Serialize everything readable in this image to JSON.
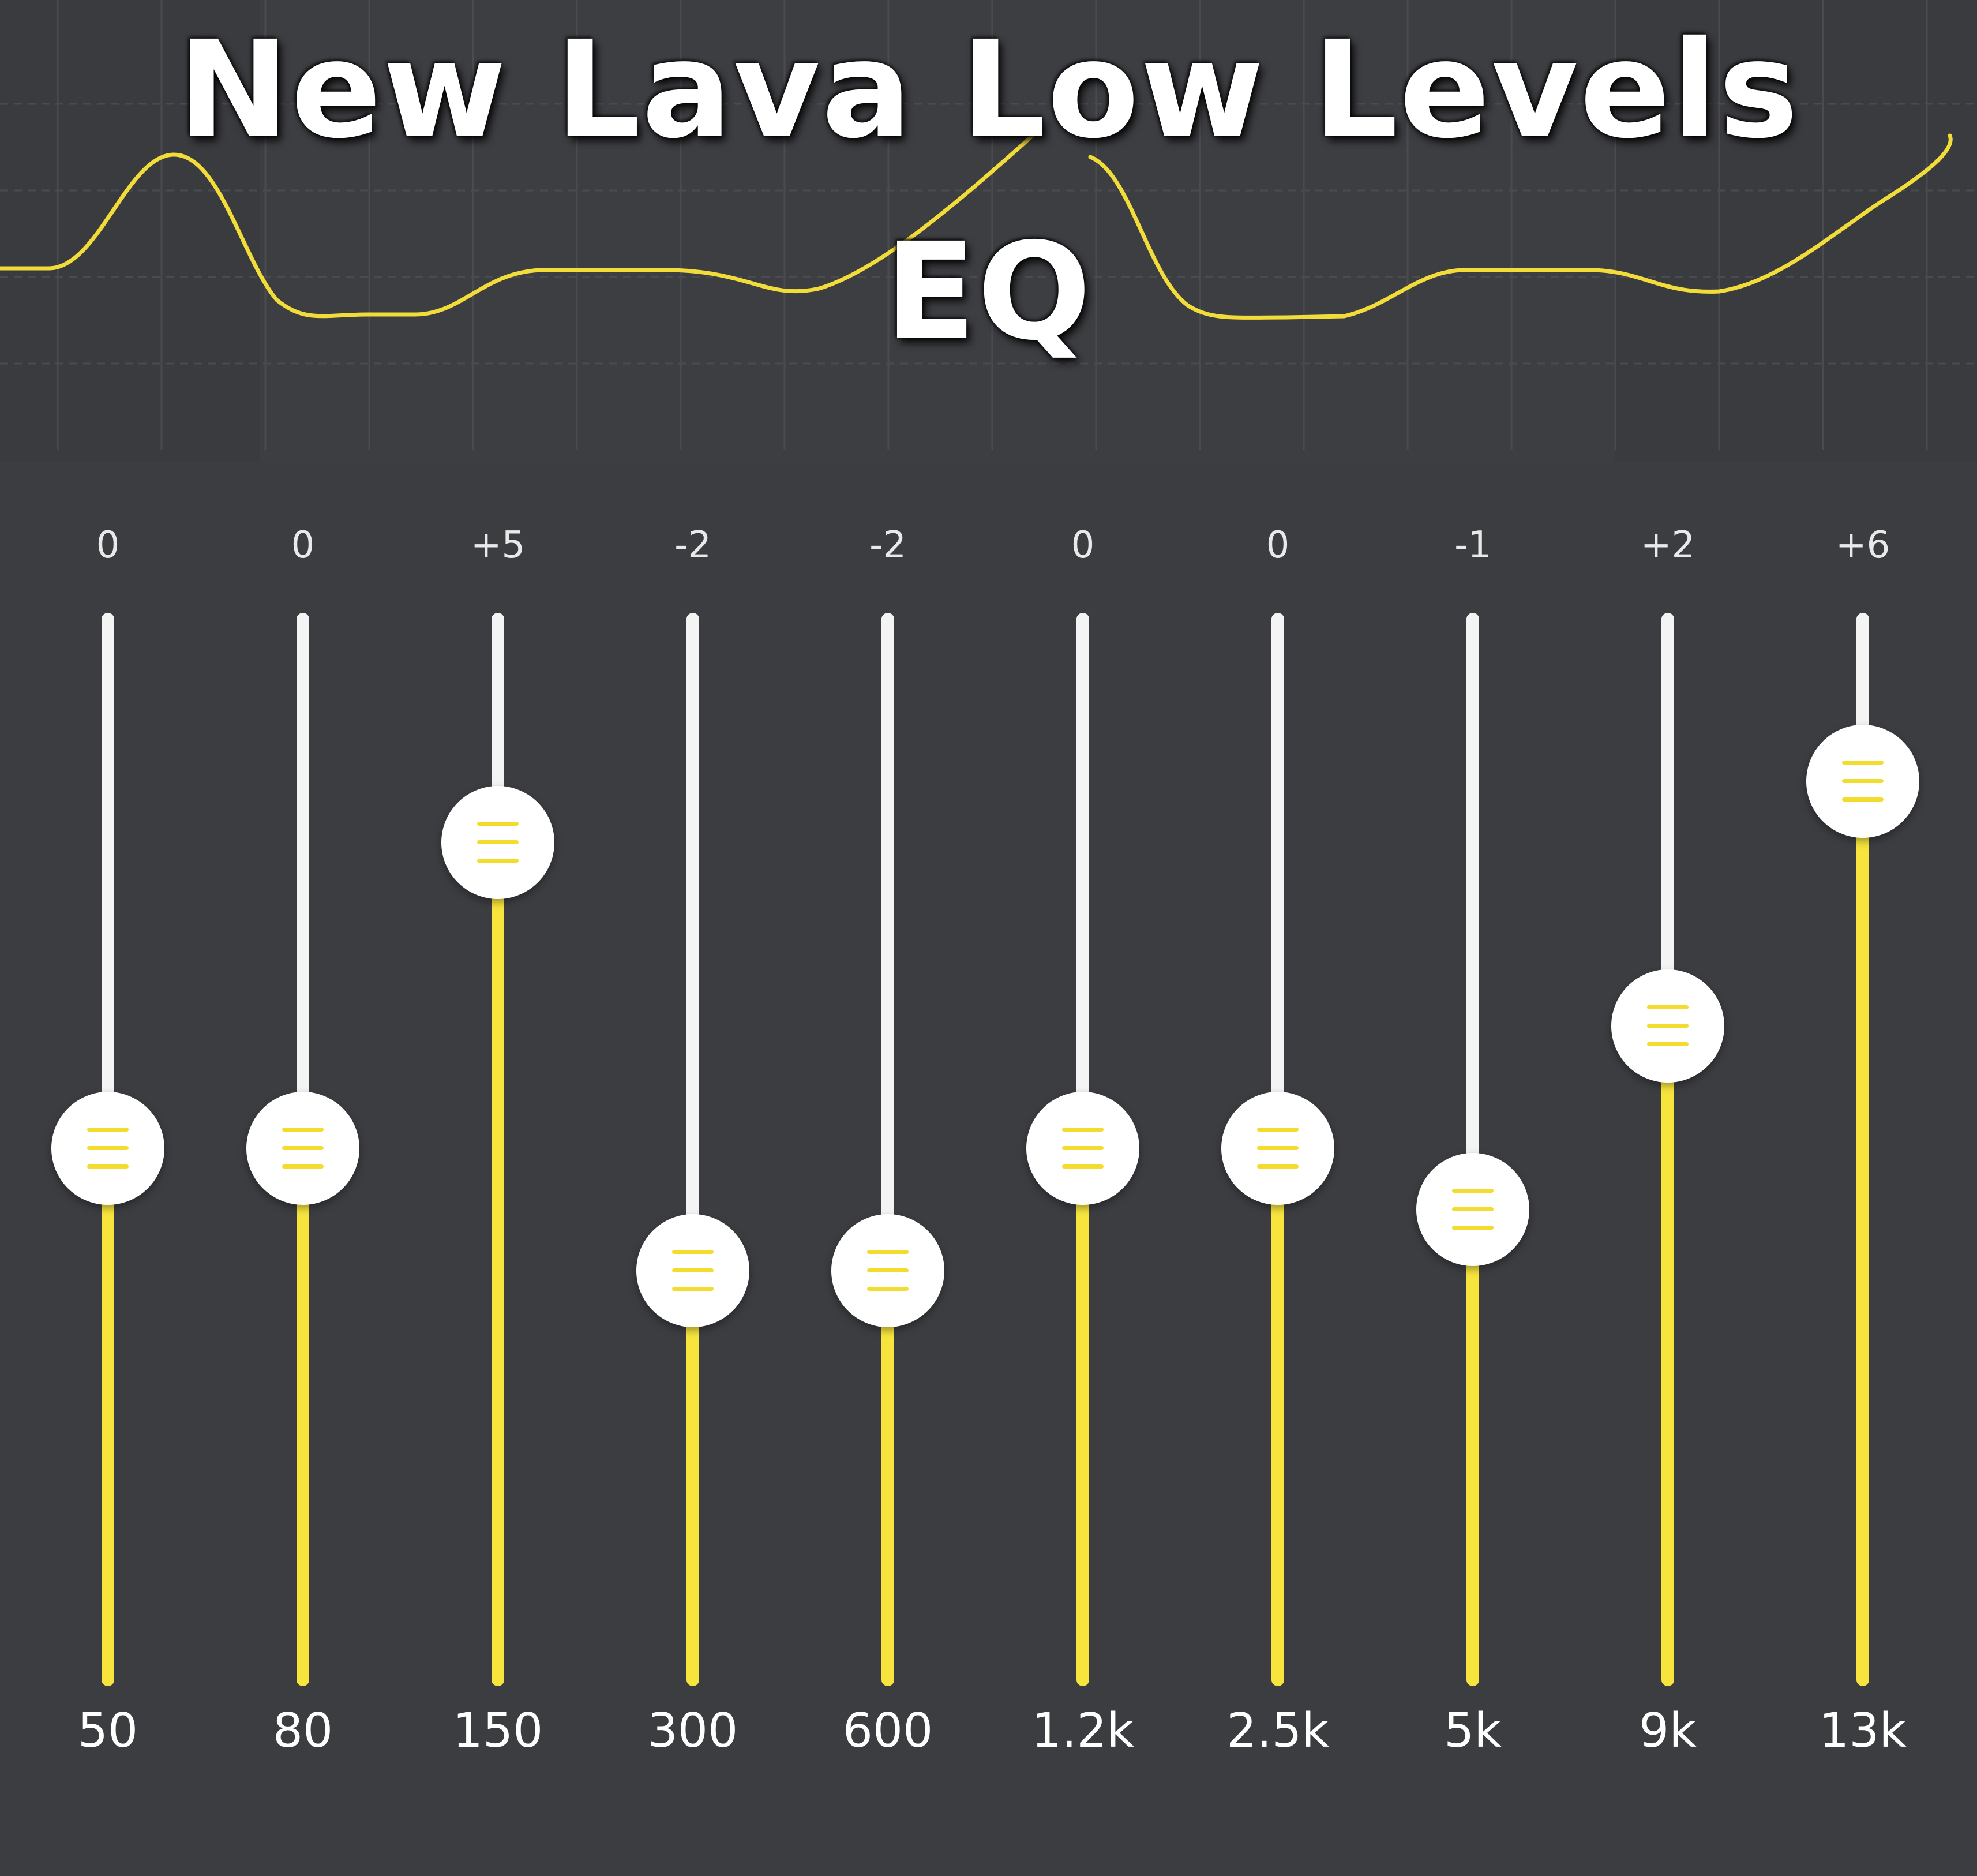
{
  "title": {
    "line1": "New Lava Low Levels",
    "line2": "EQ"
  },
  "colors": {
    "background": "#3c3d41",
    "accent": "#f7e53d",
    "track": "#f4f4f4",
    "knob": "#ffffff",
    "text": "#ffffff"
  },
  "equalizer": {
    "gain_range_db": [
      -10,
      10
    ],
    "bands": [
      {
        "freq": "50",
        "gain_label": "0",
        "gain": 0
      },
      {
        "freq": "80",
        "gain_label": "0",
        "gain": 0
      },
      {
        "freq": "150",
        "gain_label": "+5",
        "gain": 5
      },
      {
        "freq": "300",
        "gain_label": "-2",
        "gain": -2
      },
      {
        "freq": "600",
        "gain_label": "-2",
        "gain": -2
      },
      {
        "freq": "1.2k",
        "gain_label": "0",
        "gain": 0
      },
      {
        "freq": "2.5k",
        "gain_label": "0",
        "gain": 0
      },
      {
        "freq": "5k",
        "gain_label": "-1",
        "gain": -1
      },
      {
        "freq": "9k",
        "gain_label": "+2",
        "gain": 2
      },
      {
        "freq": "13k",
        "gain_label": "+6",
        "gain": 6
      }
    ]
  },
  "icons": {
    "knob_grip": "grip-lines-icon"
  }
}
